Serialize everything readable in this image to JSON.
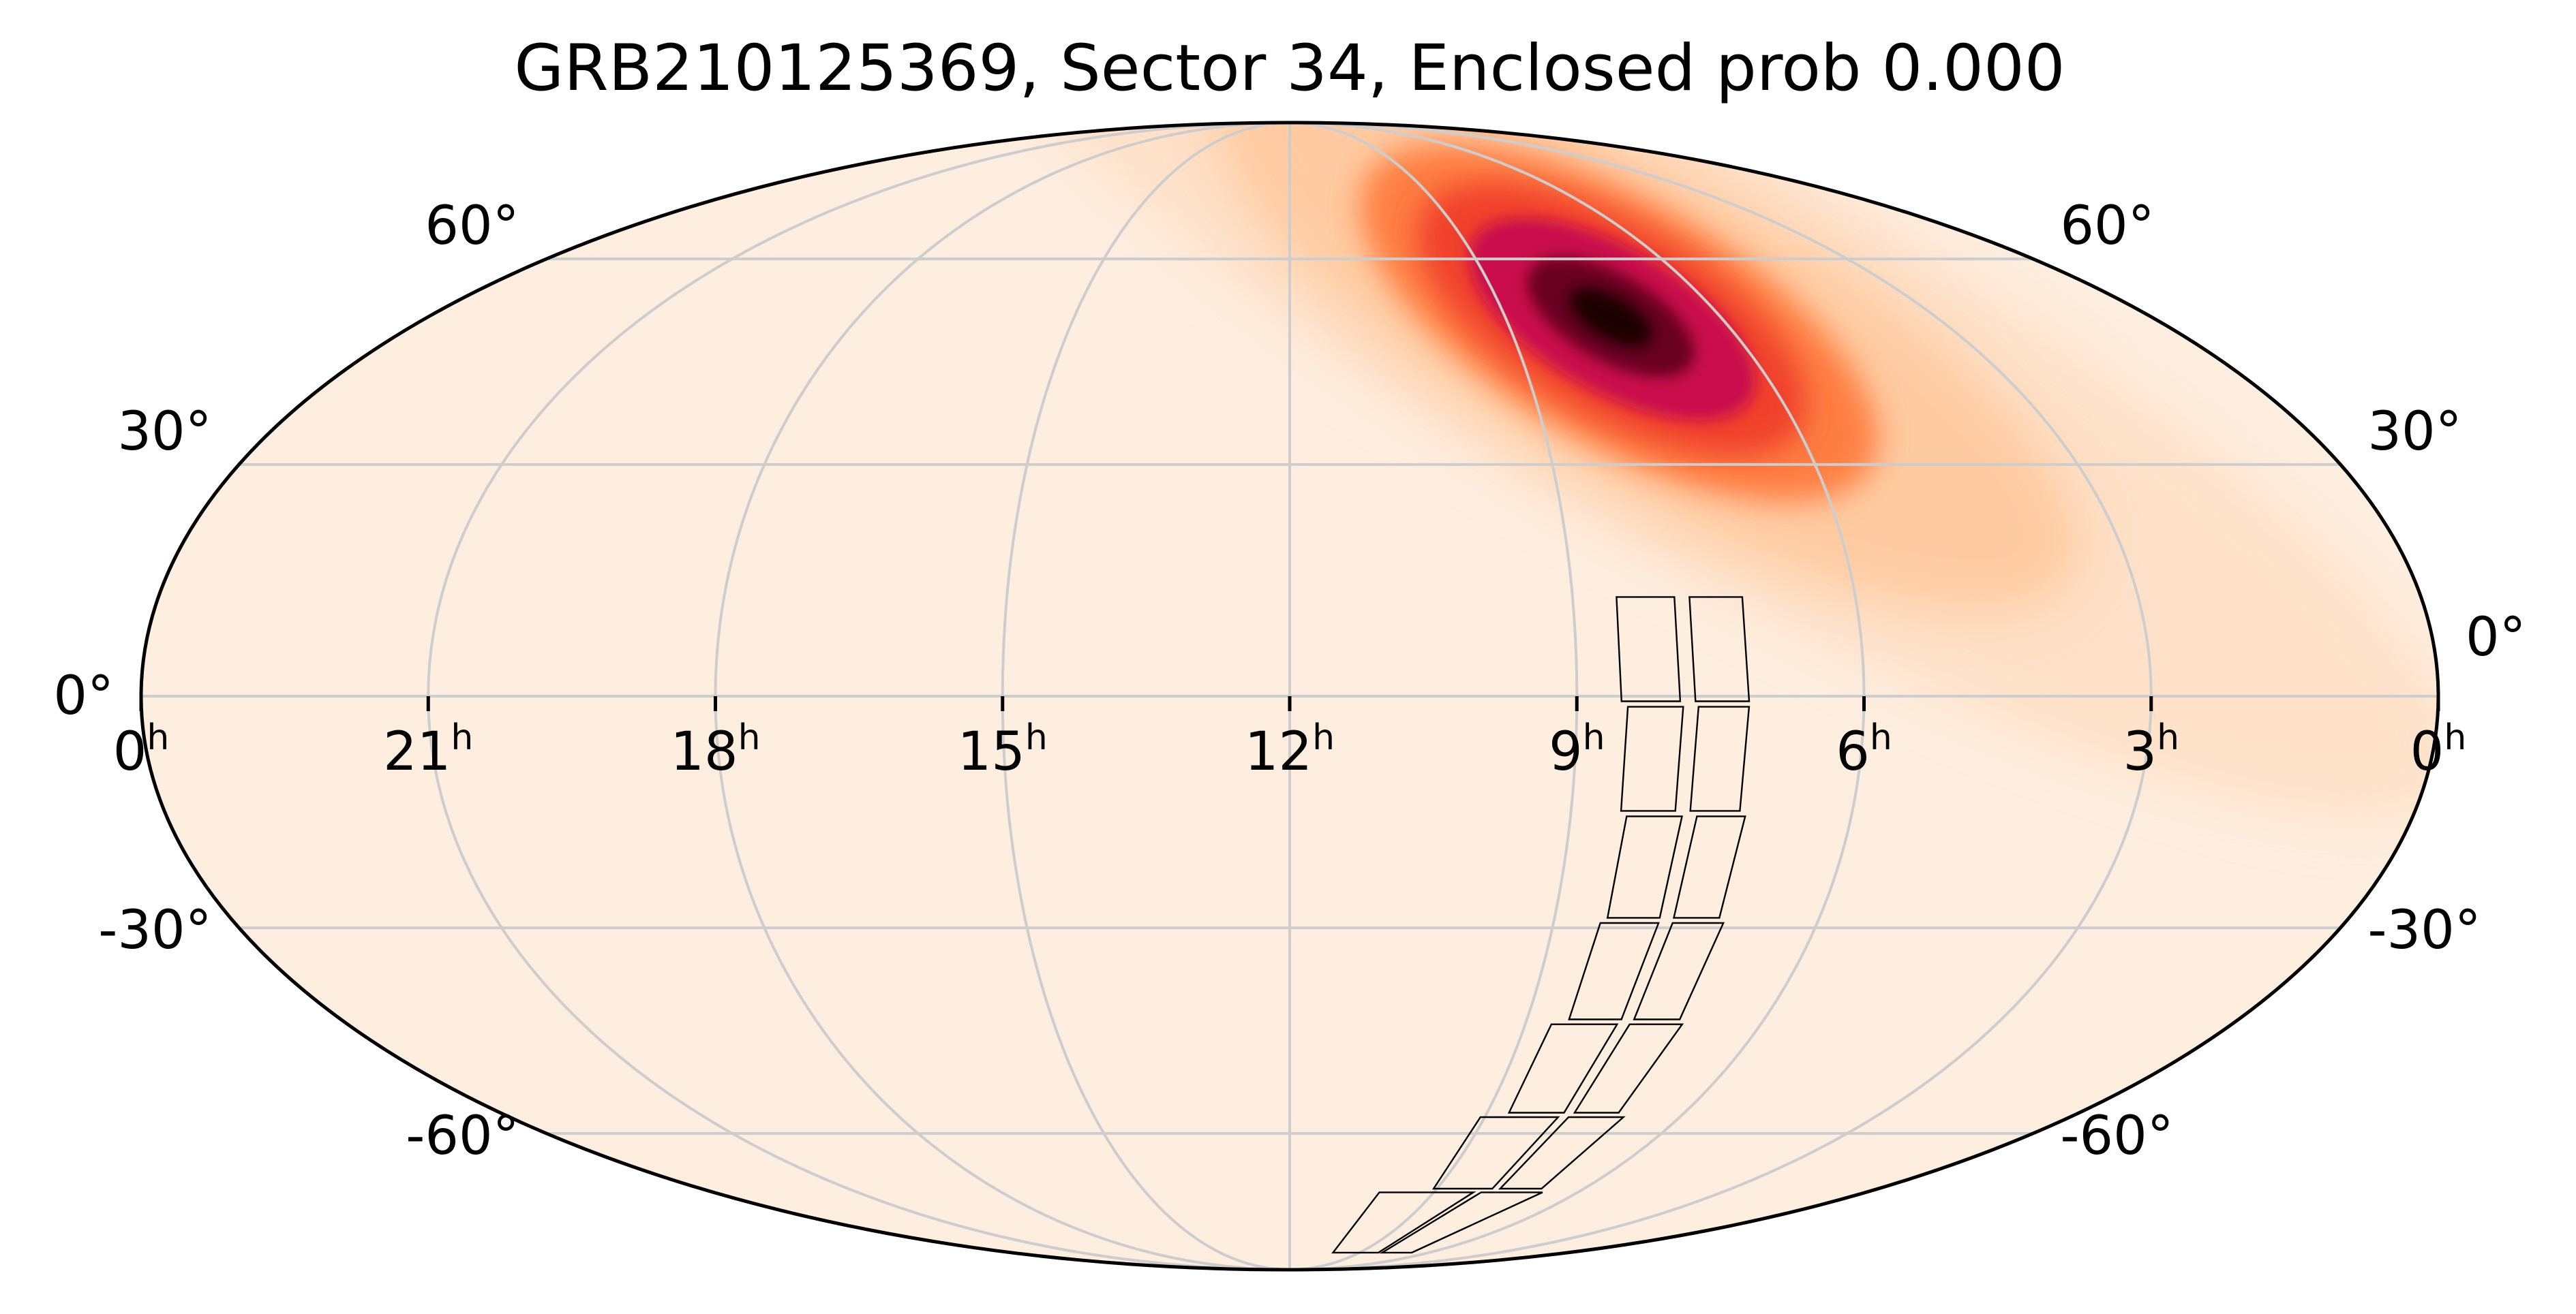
{
  "chart_data": {
    "type": "heatmap",
    "projection": "mollweide",
    "title": "GRB210125369, Sector 34, Enclosed prob 0.000",
    "colormap": "sequential light-cream to red to black",
    "colors": {
      "background": "#fdeee0",
      "frame": "#000000",
      "grid": "#cdcdcd",
      "footprint": "#000000",
      "peak": "#1a0005"
    },
    "grid": true,
    "ra_ticks": [
      {
        "ra_h": 24,
        "label": "0",
        "unit": "h"
      },
      {
        "ra_h": 21,
        "label": "21",
        "unit": "h"
      },
      {
        "ra_h": 18,
        "label": "18",
        "unit": "h"
      },
      {
        "ra_h": 15,
        "label": "15",
        "unit": "h"
      },
      {
        "ra_h": 12,
        "label": "12",
        "unit": "h"
      },
      {
        "ra_h": 9,
        "label": "9",
        "unit": "h"
      },
      {
        "ra_h": 6,
        "label": "6",
        "unit": "h"
      },
      {
        "ra_h": 3,
        "label": "3",
        "unit": "h"
      },
      {
        "ra_h": 0,
        "label": "0",
        "unit": "h"
      }
    ],
    "dec_ticks": [
      {
        "dec": 60,
        "label": "60°"
      },
      {
        "dec": 30,
        "label": "30°"
      },
      {
        "dec": 0,
        "label": "0°"
      },
      {
        "dec": -30,
        "label": "-30°"
      },
      {
        "dec": -60,
        "label": "-60°"
      }
    ],
    "probability_peak": {
      "ra_deg": 112,
      "dec_deg": 50,
      "extent_ra_deg": 60,
      "extent_dec_deg": 20
    },
    "footprint": {
      "sector": 34,
      "cameras": 4,
      "ccds_per_camera": 4,
      "rows": [
        {
          "ra_lo": 128,
          "ra_hi": 108,
          "dec_hi": 13,
          "dec_lo": -1
        },
        {
          "ra_lo": 127,
          "ra_hi": 108,
          "dec_hi": -1,
          "dec_lo": -15
        },
        {
          "ra_lo": 126,
          "ra_hi": 107,
          "dec_hi": -15,
          "dec_lo": -29
        },
        {
          "ra_lo": 127,
          "ra_hi": 106,
          "dec_hi": -29,
          "dec_lo": -43
        },
        {
          "ra_lo": 130,
          "ra_hi": 105,
          "dec_hi": -43,
          "dec_lo": -57
        },
        {
          "ra_lo": 136,
          "ra_hi": 103,
          "dec_hi": -57,
          "dec_lo": -70
        },
        {
          "ra_lo": 152,
          "ra_hi": 101,
          "dec_hi": -70,
          "dec_lo": -84
        }
      ]
    }
  }
}
